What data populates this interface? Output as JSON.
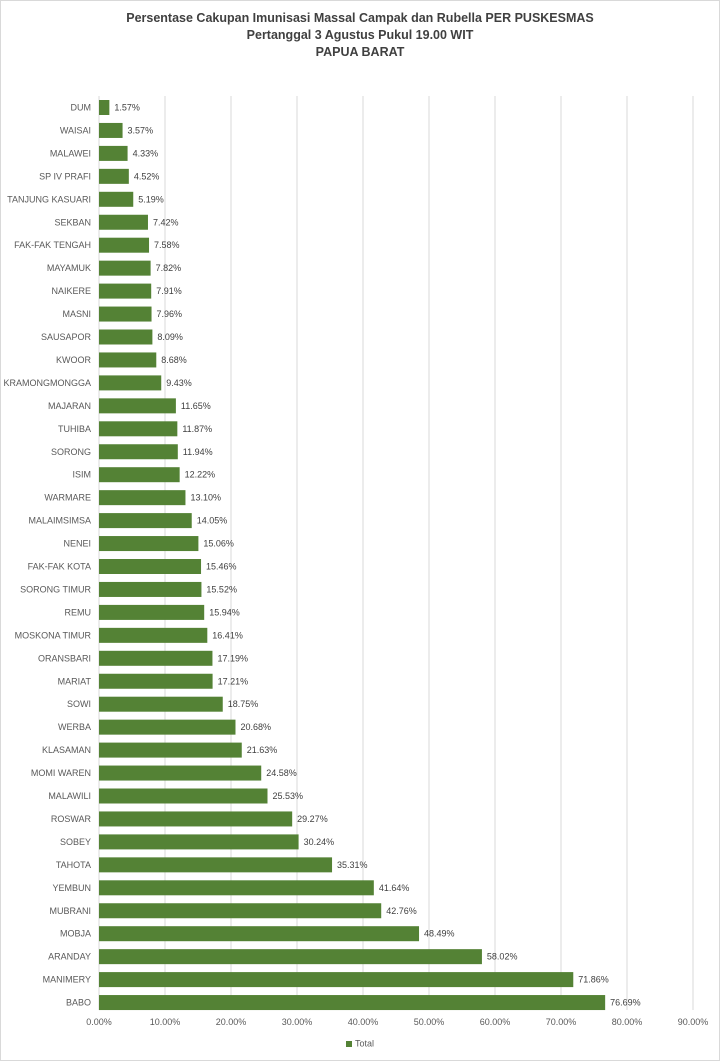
{
  "chart_data": {
    "type": "bar",
    "orientation": "horizontal",
    "title": "Persentase Cakupan Imunisasi Massal Campak dan Rubella PER PUSKESMAS",
    "subtitle": "Pertanggal 3 Agustus Pukul 19.00 WIT",
    "subtitle2": "PAPUA BARAT",
    "xlim": [
      0,
      90
    ],
    "x_ticks": [
      "0.00%",
      "10.00%",
      "20.00%",
      "30.00%",
      "40.00%",
      "50.00%",
      "60.00%",
      "70.00%",
      "80.00%",
      "90.00%"
    ],
    "grid": true,
    "legend_position": "bottom",
    "bar_color": "#548235",
    "categories": [
      "DUM",
      "WAISAI",
      "MALAWEI",
      "SP IV PRAFI",
      "TANJUNG KASUARI",
      "SEKBAN",
      "FAK-FAK TENGAH",
      "MAYAMUK",
      "NAIKERE",
      "MASNI",
      "SAUSAPOR",
      "KWOOR",
      "KRAMONGMONGGA",
      "MAJARAN",
      "TUHIBA",
      "SORONG",
      "ISIM",
      "WARMARE",
      "MALAIMSIMSA",
      "NENEI",
      "FAK-FAK KOTA",
      "SORONG TIMUR",
      "REMU",
      "MOSKONA TIMUR",
      "ORANSBARI",
      "MARIAT",
      "SOWI",
      "WERBA",
      "KLASAMAN",
      "MOMI WAREN",
      "MALAWILI",
      "ROSWAR",
      "SOBEY",
      "TAHOTA",
      "YEMBUN",
      "MUBRANI",
      "MOBJA",
      "ARANDAY",
      "MANIMERY",
      "BABO"
    ],
    "series": [
      {
        "name": "Total",
        "values": [
          1.57,
          3.57,
          4.33,
          4.52,
          5.19,
          7.42,
          7.58,
          7.82,
          7.91,
          7.96,
          8.09,
          8.68,
          9.43,
          11.65,
          11.87,
          11.94,
          12.22,
          13.1,
          14.05,
          15.06,
          15.46,
          15.52,
          15.94,
          16.41,
          17.19,
          17.21,
          18.75,
          20.68,
          21.63,
          24.58,
          25.53,
          29.27,
          30.24,
          35.31,
          41.64,
          42.76,
          48.49,
          58.02,
          71.86,
          76.69
        ],
        "labels": [
          "1.57%",
          "3.57%",
          "4.33%",
          "4.52%",
          "5.19%",
          "7.42%",
          "7.58%",
          "7.82%",
          "7.91%",
          "7.96%",
          "8.09%",
          "8.68%",
          "9.43%",
          "11.65%",
          "11.87%",
          "11.94%",
          "12.22%",
          "13.10%",
          "14.05%",
          "15.06%",
          "15.46%",
          "15.52%",
          "15.94%",
          "16.41%",
          "17.19%",
          "17.21%",
          "18.75%",
          "20.68%",
          "21.63%",
          "24.58%",
          "25.53%",
          "29.27%",
          "30.24%",
          "35.31%",
          "41.64%",
          "42.76%",
          "48.49%",
          "58.02%",
          "71.86%",
          "76.69%"
        ]
      }
    ]
  }
}
